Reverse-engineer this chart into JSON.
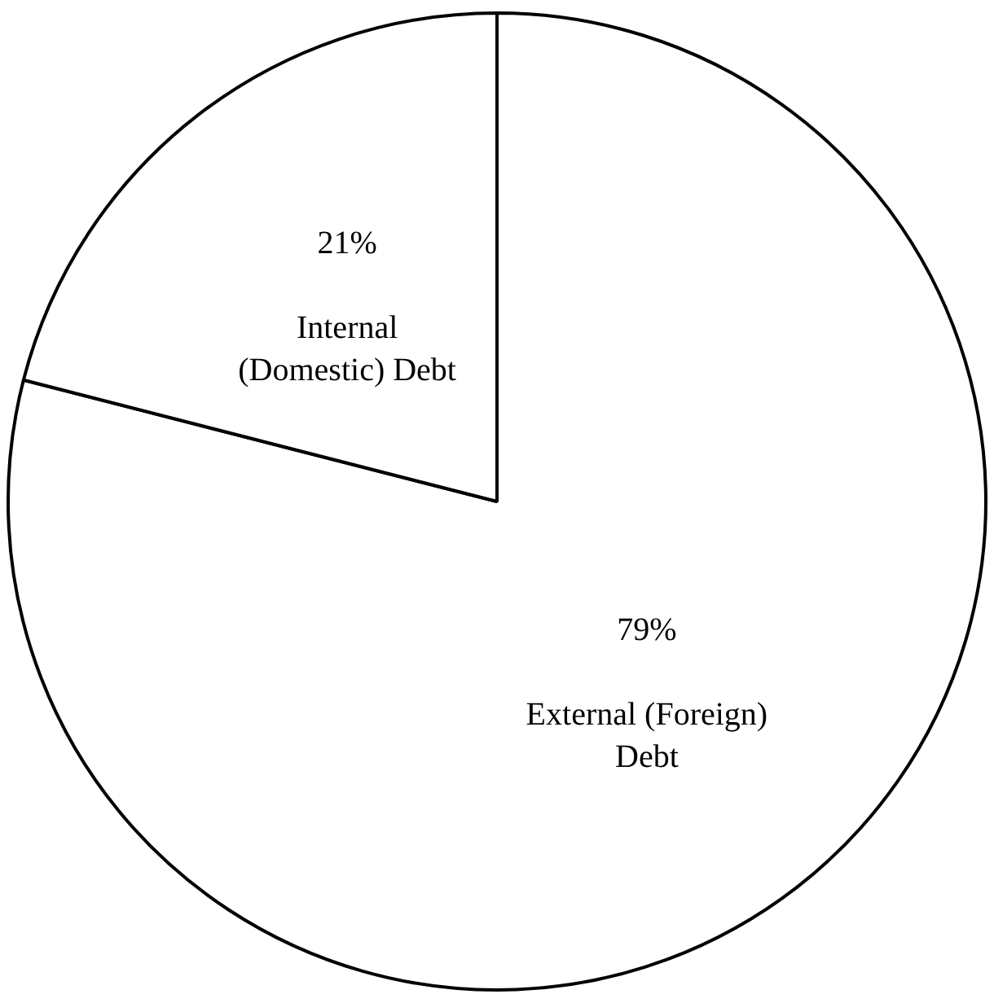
{
  "chart_data": {
    "type": "pie",
    "categories": [
      "External (Foreign) Debt",
      "Internal (Domestic) Debt"
    ],
    "values": [
      79,
      21
    ],
    "value_labels": [
      "79%",
      "21%"
    ],
    "colors": [
      "#ffffff",
      "#ffffff"
    ],
    "legend": false
  }
}
